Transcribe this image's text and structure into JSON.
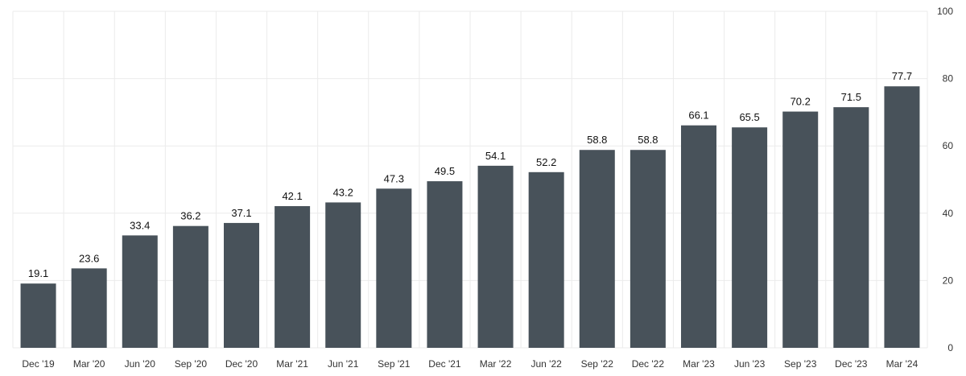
{
  "chart_data": {
    "type": "bar",
    "categories": [
      "Dec '19",
      "Mar '20",
      "Jun '20",
      "Sep '20",
      "Dec '20",
      "Mar '21",
      "Jun '21",
      "Sep '21",
      "Dec '21",
      "Mar '22",
      "Jun '22",
      "Sep '22",
      "Dec '22",
      "Mar '23",
      "Jun '23",
      "Sep '23",
      "Dec '23",
      "Mar '24"
    ],
    "values": [
      19.1,
      23.6,
      33.4,
      36.2,
      37.1,
      42.1,
      43.2,
      47.3,
      49.5,
      54.1,
      52.2,
      58.8,
      58.8,
      66.1,
      65.5,
      70.2,
      71.5,
      77.7
    ],
    "data_labels": [
      "19.1",
      "23.6",
      "33.4",
      "36.2",
      "37.1",
      "42.1",
      "43.2",
      "47.3",
      "49.5",
      "54.1",
      "52.2",
      "58.8",
      "58.8",
      "66.1",
      "65.5",
      "70.2",
      "71.5",
      "77.7"
    ],
    "y_ticks": [
      "0",
      "20",
      "40",
      "60",
      "80",
      "100"
    ],
    "title": "",
    "xlabel": "",
    "ylabel": "",
    "ylim": [
      0,
      100
    ],
    "y_axis_side": "right",
    "grid": true,
    "legend": false,
    "bar_color": "#48525a"
  }
}
